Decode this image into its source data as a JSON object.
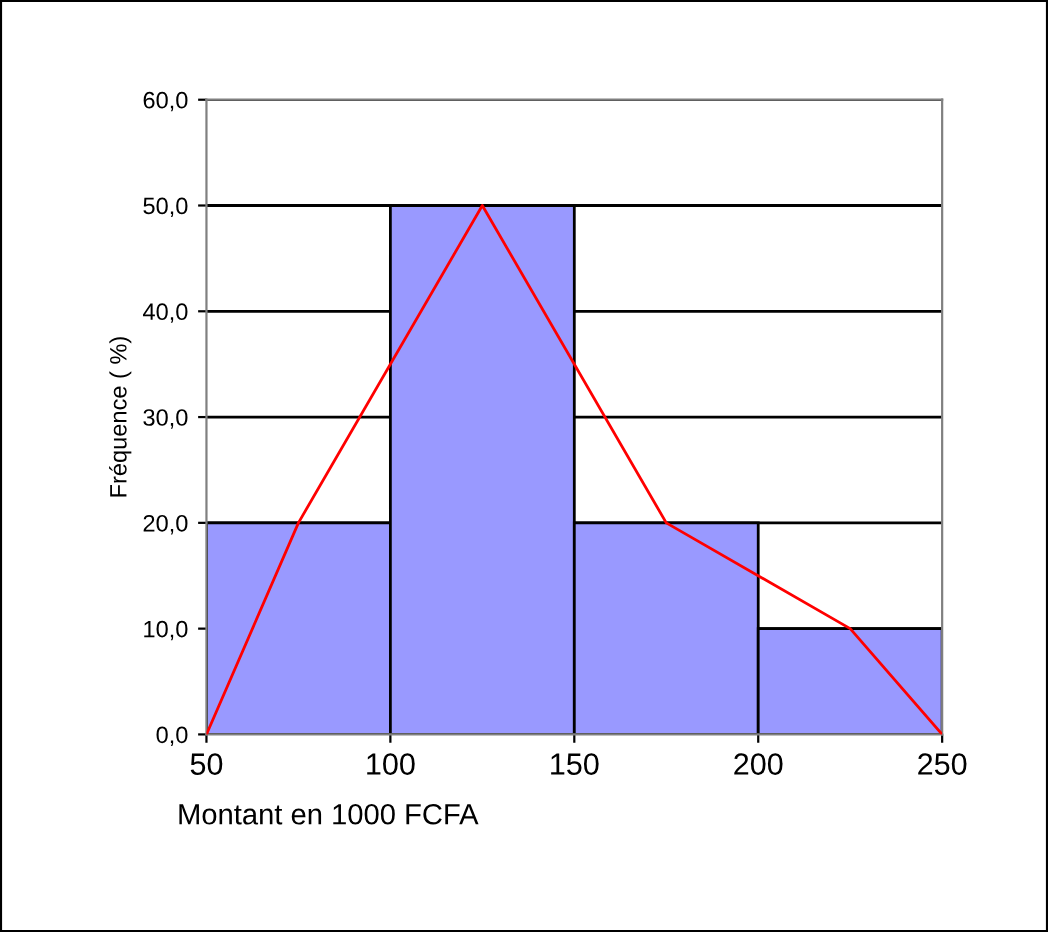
{
  "chart_data": {
    "type": "histogram",
    "xlabel": "Montant en 1000 FCFA",
    "ylabel": "Fréquence ( %)",
    "bins": [
      50,
      100,
      150,
      200,
      250
    ],
    "values": [
      20,
      50,
      20,
      10
    ],
    "color": "#9999ff",
    "series": [
      {
        "type": "line",
        "x": [
          50,
          75,
          125,
          175,
          225,
          250
        ],
        "values": [
          0,
          20,
          50,
          20,
          10,
          0
        ],
        "color": "#ff0000"
      }
    ],
    "xlim": [
      50,
      250
    ],
    "xticks": [
      50,
      100,
      150,
      200,
      250
    ],
    "ylim": [
      0,
      60
    ],
    "yticks": [
      {
        "value": 0,
        "label": "0,0"
      },
      {
        "value": 10,
        "label": "10,0"
      },
      {
        "value": 20,
        "label": "20,0"
      },
      {
        "value": 30,
        "label": "30,0"
      },
      {
        "value": 40,
        "label": "40,0"
      },
      {
        "value": 50,
        "label": "50,0"
      },
      {
        "value": 60,
        "label": "60,0"
      }
    ],
    "grid": "y"
  }
}
